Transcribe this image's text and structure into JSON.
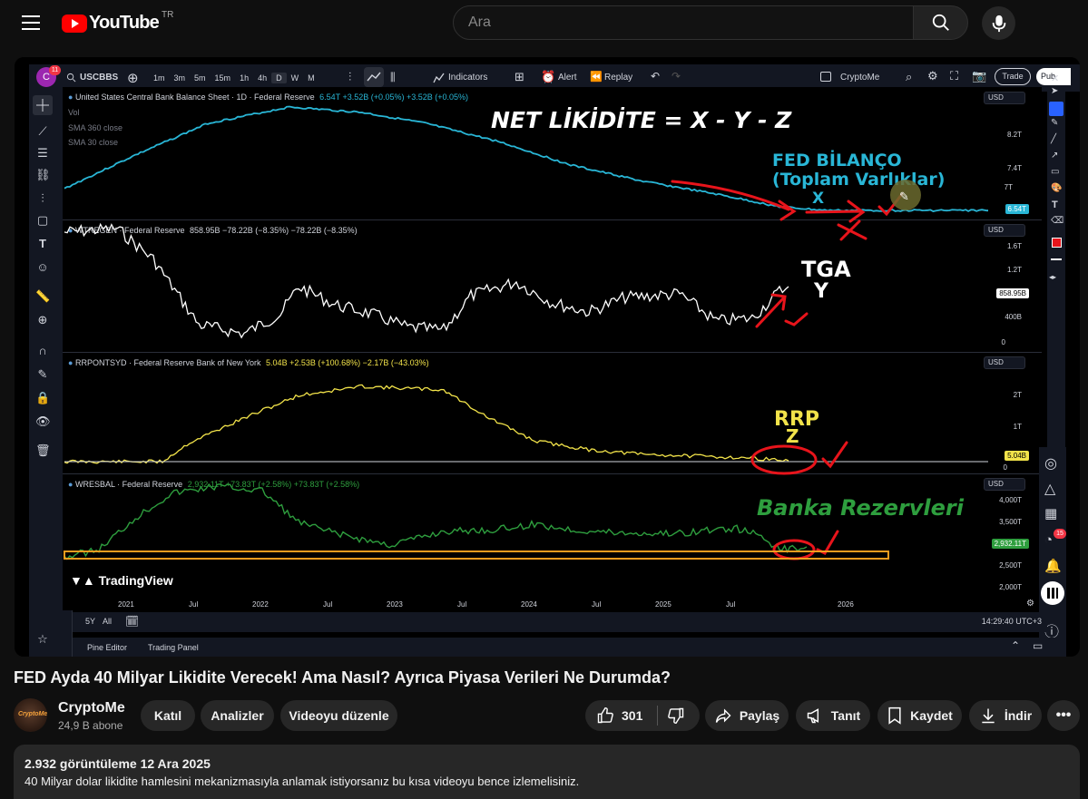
{
  "header": {
    "logo_text": "YouTube",
    "region": "TR",
    "search_placeholder": "Ara"
  },
  "tv": {
    "badge_count": "11",
    "symbol": "USCBBS",
    "intervals": [
      "1m",
      "3m",
      "5m",
      "15m",
      "1h",
      "4h",
      "D",
      "W",
      "M"
    ],
    "indicators_label": "Indicators",
    "alert_label": "Alert",
    "replay_label": "Replay",
    "layout_name": "CryptoMe",
    "trade_label": "Trade",
    "publish_label": "Pub",
    "panel1_title": "United States Central Bank Balance Sheet · 1D · Federal Reserve",
    "panel1_values": "6.54T +3.52B (+0.05%) +3.52B (+0.05%)",
    "panel1_sub": [
      "Vol",
      "SMA 360 close",
      "SMA 30 close"
    ],
    "panel2_title": "WTREGEN · Federal Reserve",
    "panel2_values": "858.95B −78.22B (−8.35%) −78.22B (−8.35%)",
    "panel3_title": "RRPONTSYD · Federal Reserve Bank of New York",
    "panel3_values": "5.04B +2.53B (+100.68%) −2.17B (−43.03%)",
    "panel4_title": "WRESBAL · Federal Reserve",
    "panel4_values": "2,932.11T +73.83T (+2.58%) +73.83T (+2.58%)",
    "currency": "USD",
    "p1_ticks": [
      "8.2T",
      "7.4T",
      "7T"
    ],
    "p1_last": "6.54T",
    "p2_ticks": [
      "1.6T",
      "1.2T",
      "400B",
      "0"
    ],
    "p2_last": "858.95B",
    "p3_ticks": [
      "2T",
      "1T",
      "0"
    ],
    "p3_last": "5.04B",
    "p4_ticks": [
      "4,000T",
      "3,500T",
      "2,500T",
      "2,000T"
    ],
    "p4_last": "2,932.11T",
    "x_ticks": [
      "2021",
      "Jul",
      "2022",
      "Jul",
      "2023",
      "Jul",
      "2024",
      "Jul",
      "2025",
      "Jul",
      "2026"
    ],
    "watermark": "TradingView",
    "range_buttons": [
      "5Y",
      "All"
    ],
    "clock": "14:29:40 UTC+3",
    "footer_tabs": [
      "Pine Editor",
      "Trading Panel"
    ],
    "notif_count": "15"
  },
  "annotations": {
    "headline": "NET LİKİDİTE = X - Y - Z",
    "fed_line1": "FED BİLANÇO",
    "fed_line2": "(Toplam Varlıklar)",
    "fed_var": "X",
    "tga": "TGA",
    "tga_var": "Y",
    "rrp": "RRP",
    "rrp_var": "Z",
    "banks": "Banka Rezervleri",
    "colors": {
      "white": "#ffffff",
      "cyan": "#29b6d6",
      "yellow": "#f2e34a",
      "green": "#2e9e3e",
      "red": "#e8141b"
    }
  },
  "video": {
    "title": "FED Ayda 40 Milyar Likidite Verecek! Ama Nasıl? Ayrıca Piyasa Verileri Ne Durumda?",
    "channel": "CryptoMe",
    "subscribers": "24,9 B abone",
    "join_label": "Katıl",
    "analytics_label": "Analizler",
    "edit_label": "Videoyu düzenle",
    "likes": "301",
    "share_label": "Paylaş",
    "promote_label": "Tanıt",
    "save_label": "Kaydet",
    "download_label": "İndir",
    "views_date": "2.932 görüntüleme  12 Ara 2025",
    "description": "40 Milyar dolar likidite hamlesini mekanizmasıyla anlamak istiyorsanız bu kısa videoyu bence izlemelisiniz."
  }
}
